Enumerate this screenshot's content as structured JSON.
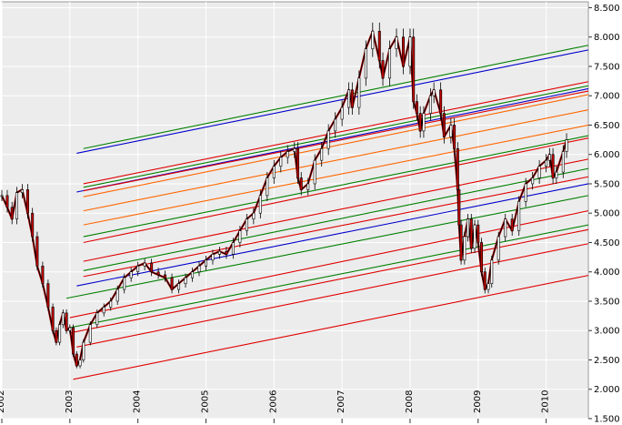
{
  "chart_data": {
    "type": "line",
    "title": "",
    "xlabel": "",
    "ylabel": "",
    "grid": true,
    "legend": "none",
    "x_axis": {
      "range": [
        2002.0,
        2010.62
      ],
      "tick_labels": [
        "2002",
        "2003",
        "2004",
        "2005",
        "2006",
        "2007",
        "2008",
        "2009",
        "2010"
      ]
    },
    "y_axis": {
      "side": "right",
      "range": [
        1.5,
        8.6
      ],
      "tick_values": [
        1.5,
        2.0,
        2.5,
        3.0,
        3.5,
        4.0,
        4.5,
        5.0,
        5.5,
        6.0,
        6.5,
        7.0,
        7.5,
        8.0,
        8.5
      ],
      "tick_labels": [
        "1.500",
        "2.000",
        "2.500",
        "3.000",
        "3.500",
        "4.000",
        "4.500",
        "5.000",
        "5.500",
        "6.000",
        "6.500",
        "7.000",
        "7.500",
        "8.000",
        "8.500"
      ]
    },
    "colors": {
      "background": "#ececec",
      "grid": "#ffffff",
      "price_line": "#000000",
      "candle_up": "#111111",
      "candle_down": "#c00000"
    },
    "price_series": {
      "name": "",
      "points": [
        [
          2002.0,
          5.3
        ],
        [
          2002.08,
          5.1
        ],
        [
          2002.15,
          4.9
        ],
        [
          2002.22,
          5.35
        ],
        [
          2002.3,
          5.4
        ],
        [
          2002.38,
          5.0
        ],
        [
          2002.45,
          4.6
        ],
        [
          2002.52,
          4.1
        ],
        [
          2002.6,
          3.8
        ],
        [
          2002.68,
          3.4
        ],
        [
          2002.75,
          3.0
        ],
        [
          2002.8,
          2.8
        ],
        [
          2002.85,
          3.1
        ],
        [
          2002.9,
          3.3
        ],
        [
          2002.95,
          3.0
        ],
        [
          2003.0,
          3.05
        ],
        [
          2003.05,
          2.6
        ],
        [
          2003.1,
          2.4
        ],
        [
          2003.15,
          2.5
        ],
        [
          2003.2,
          2.8
        ],
        [
          2003.3,
          3.1
        ],
        [
          2003.4,
          3.3
        ],
        [
          2003.5,
          3.4
        ],
        [
          2003.6,
          3.5
        ],
        [
          2003.7,
          3.7
        ],
        [
          2003.8,
          3.9
        ],
        [
          2003.9,
          4.0
        ],
        [
          2004.0,
          4.1
        ],
        [
          2004.1,
          4.15
        ],
        [
          2004.2,
          4.0
        ],
        [
          2004.3,
          3.95
        ],
        [
          2004.4,
          3.9
        ],
        [
          2004.5,
          3.7
        ],
        [
          2004.6,
          3.8
        ],
        [
          2004.7,
          3.9
        ],
        [
          2004.8,
          4.0
        ],
        [
          2004.9,
          4.1
        ],
        [
          2005.0,
          4.2
        ],
        [
          2005.1,
          4.3
        ],
        [
          2005.2,
          4.35
        ],
        [
          2005.3,
          4.3
        ],
        [
          2005.4,
          4.5
        ],
        [
          2005.5,
          4.7
        ],
        [
          2005.6,
          4.9
        ],
        [
          2005.7,
          5.0
        ],
        [
          2005.8,
          5.3
        ],
        [
          2005.9,
          5.6
        ],
        [
          2006.0,
          5.8
        ],
        [
          2006.1,
          5.95
        ],
        [
          2006.2,
          6.05
        ],
        [
          2006.3,
          6.1
        ],
        [
          2006.35,
          5.6
        ],
        [
          2006.4,
          5.4
        ],
        [
          2006.5,
          5.5
        ],
        [
          2006.6,
          5.9
        ],
        [
          2006.7,
          6.1
        ],
        [
          2006.8,
          6.4
        ],
        [
          2006.9,
          6.6
        ],
        [
          2007.0,
          6.8
        ],
        [
          2007.1,
          7.1
        ],
        [
          2007.15,
          6.8
        ],
        [
          2007.25,
          7.3
        ],
        [
          2007.35,
          7.8
        ],
        [
          2007.45,
          8.1
        ],
        [
          2007.55,
          7.6
        ],
        [
          2007.6,
          7.3
        ],
        [
          2007.7,
          7.8
        ],
        [
          2007.8,
          8.0
        ],
        [
          2007.9,
          7.5
        ],
        [
          2008.0,
          8.0
        ],
        [
          2008.05,
          6.9
        ],
        [
          2008.1,
          6.7
        ],
        [
          2008.15,
          6.4
        ],
        [
          2008.2,
          6.7
        ],
        [
          2008.3,
          7.0
        ],
        [
          2008.35,
          7.1
        ],
        [
          2008.45,
          6.7
        ],
        [
          2008.5,
          6.3
        ],
        [
          2008.6,
          6.5
        ],
        [
          2008.65,
          6.1
        ],
        [
          2008.7,
          5.4
        ],
        [
          2008.72,
          4.8
        ],
        [
          2008.75,
          4.2
        ],
        [
          2008.8,
          4.6
        ],
        [
          2008.85,
          4.9
        ],
        [
          2008.9,
          4.4
        ],
        [
          2008.95,
          4.8
        ],
        [
          2009.0,
          4.5
        ],
        [
          2009.05,
          4.0
        ],
        [
          2009.1,
          3.7
        ],
        [
          2009.15,
          3.8
        ],
        [
          2009.2,
          4.2
        ],
        [
          2009.3,
          4.6
        ],
        [
          2009.4,
          4.9
        ],
        [
          2009.5,
          4.7
        ],
        [
          2009.6,
          5.2
        ],
        [
          2009.7,
          5.5
        ],
        [
          2009.8,
          5.6
        ],
        [
          2009.9,
          5.8
        ],
        [
          2010.0,
          5.9
        ],
        [
          2010.05,
          6.0
        ],
        [
          2010.1,
          5.6
        ],
        [
          2010.15,
          5.7
        ],
        [
          2010.25,
          6.05
        ],
        [
          2010.3,
          6.25
        ]
      ]
    },
    "channel_lines": [
      {
        "x": [
          2003.2,
          2010.62
        ],
        "y": [
          6.1,
          7.86
        ],
        "color": "#008000"
      },
      {
        "x": [
          2003.1,
          2010.62
        ],
        "y": [
          6.02,
          7.78
        ],
        "color": "#0000cc"
      },
      {
        "x": [
          2003.2,
          2010.62
        ],
        "y": [
          5.5,
          7.24
        ],
        "color": "#e00000"
      },
      {
        "x": [
          2003.2,
          2010.62
        ],
        "y": [
          5.44,
          7.17
        ],
        "color": "#008000"
      },
      {
        "x": [
          2003.1,
          2010.62
        ],
        "y": [
          5.36,
          7.12
        ],
        "color": "#0000cc"
      },
      {
        "x": [
          2003.2,
          2010.62
        ],
        "y": [
          5.38,
          7.08
        ],
        "color": "#e00000"
      },
      {
        "x": [
          2003.2,
          2010.62
        ],
        "y": [
          5.28,
          7.02
        ],
        "color": "#ff6600"
      },
      {
        "x": [
          2003.2,
          2010.62
        ],
        "y": [
          5.04,
          6.76
        ],
        "color": "#ff6600"
      },
      {
        "x": [
          2003.2,
          2010.62
        ],
        "y": [
          4.8,
          6.5
        ],
        "color": "#ff6600"
      },
      {
        "x": [
          2003.2,
          2010.62
        ],
        "y": [
          4.6,
          6.32
        ],
        "color": "#008000"
      },
      {
        "x": [
          2003.2,
          2010.62
        ],
        "y": [
          4.5,
          6.28
        ],
        "color": "#e00000"
      },
      {
        "x": [
          2003.2,
          2010.62
        ],
        "y": [
          4.18,
          5.92
        ],
        "color": "#e00000"
      },
      {
        "x": [
          2003.2,
          2010.62
        ],
        "y": [
          4.02,
          5.76
        ],
        "color": "#008000"
      },
      {
        "x": [
          2003.1,
          2010.62
        ],
        "y": [
          3.76,
          5.5
        ],
        "color": "#0000cc"
      },
      {
        "x": [
          2003.2,
          2010.62
        ],
        "y": [
          3.92,
          5.62
        ],
        "color": "#e00000"
      },
      {
        "x": [
          2002.95,
          2010.62
        ],
        "y": [
          3.55,
          5.3
        ],
        "color": "#008000"
      },
      {
        "x": [
          2003.0,
          2010.62
        ],
        "y": [
          3.22,
          5.04
        ],
        "color": "#e00000"
      },
      {
        "x": [
          2003.0,
          2010.62
        ],
        "y": [
          3.05,
          4.8
        ],
        "color": "#008000"
      },
      {
        "x": [
          2003.0,
          2010.62
        ],
        "y": [
          2.96,
          4.72
        ],
        "color": "#e00000"
      },
      {
        "x": [
          2003.1,
          2010.62
        ],
        "y": [
          2.72,
          4.48
        ],
        "color": "#e00000"
      },
      {
        "x": [
          2003.05,
          2010.62
        ],
        "y": [
          2.17,
          3.94
        ],
        "color": "#e00000"
      }
    ]
  }
}
